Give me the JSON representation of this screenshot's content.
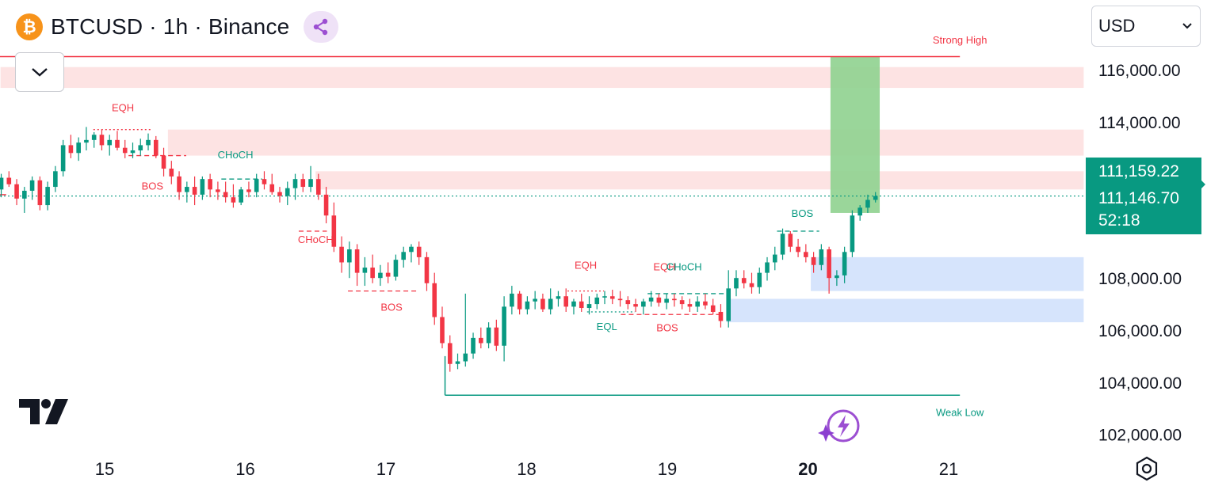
{
  "header": {
    "symbol": "BTCUSD · 1h · Binance",
    "coin_icon": "bitcoin-icon",
    "share_icon": "share-icon"
  },
  "currency_select": {
    "value": "USD"
  },
  "colors": {
    "up": "#089981",
    "down": "#f23645",
    "supply_zone": "#fde3e3",
    "demand_zone": "#d6e4fc",
    "target": "#8fd18f",
    "price_tag": "#089981"
  },
  "price_scale": {
    "ticks": [
      "116,000.00",
      "114,000.00",
      "108,000.00",
      "106,000.00",
      "104,000.00",
      "102,000.00"
    ],
    "last_price_tag": {
      "high": "111,159.22",
      "last": "111,146.70",
      "countdown": "52:18"
    }
  },
  "time_scale": {
    "labels": [
      "15",
      "16",
      "17",
      "18",
      "19",
      "20",
      "21"
    ],
    "bold_label": "20"
  },
  "chart_data": {
    "type": "candlestick",
    "title": "BTCUSD · 1h · Binance",
    "x": [
      "15",
      "16",
      "17",
      "18",
      "19",
      "20",
      "21"
    ],
    "ylim": [
      101400,
      117400
    ],
    "last_price": 111146.7,
    "strong_high": 116500,
    "weak_low": 103500,
    "zones": [
      {
        "kind": "supply",
        "from_day": 14.26,
        "to_day": 21.96,
        "low": 115300,
        "high": 116100
      },
      {
        "kind": "supply",
        "from_day": 15.45,
        "to_day": 21.96,
        "low": 112700,
        "high": 113700
      },
      {
        "kind": "supply",
        "from_day": 16.5,
        "to_day": 21.96,
        "low": 111400,
        "high": 112100
      },
      {
        "kind": "demand",
        "from_day": 20.02,
        "to_day": 21.96,
        "low": 107500,
        "high": 108800
      },
      {
        "kind": "demand",
        "from_day": 19.42,
        "to_day": 21.96,
        "low": 106300,
        "high": 107200
      },
      {
        "kind": "target",
        "from_day": 20.16,
        "to_day": 20.51,
        "low": 110500,
        "high": 116500
      }
    ],
    "labels": [
      {
        "text": "Strong High",
        "color": "#f23645",
        "day": 21.08,
        "price": 117000
      },
      {
        "text": "Weak Low",
        "color": "#089981",
        "day": 21.08,
        "price": 102700
      },
      {
        "text": "EQH",
        "color": "#f23645",
        "day": 15.13,
        "price": 114400
      },
      {
        "text": "BOS",
        "color": "#f23645",
        "day": 15.34,
        "price": 111400
      },
      {
        "text": "CHoCH",
        "color": "#089981",
        "day": 15.93,
        "price": 112600
      },
      {
        "text": "CHoCH",
        "color": "#f23645",
        "day": 16.5,
        "price": 109350
      },
      {
        "text": "BOS",
        "color": "#f23645",
        "day": 17.04,
        "price": 106750
      },
      {
        "text": "EQH",
        "color": "#f23645",
        "day": 18.42,
        "price": 108350
      },
      {
        "text": "EQL",
        "color": "#089981",
        "day": 18.57,
        "price": 106000
      },
      {
        "text": "BOS",
        "color": "#f23645",
        "day": 19.0,
        "price": 105950
      },
      {
        "text": "EQH",
        "color": "#f23645",
        "day": 18.98,
        "price": 108300
      },
      {
        "text": "CHoCH",
        "color": "#089981",
        "day": 19.12,
        "price": 108300
      },
      {
        "text": "BOS",
        "color": "#089981",
        "day": 19.96,
        "price": 110350
      }
    ],
    "structure_lines": [
      {
        "color": "#f23645",
        "dash": "dotted",
        "from_day": 14.92,
        "to_day": 15.33,
        "price": 113700
      },
      {
        "color": "#f23645",
        "dash": "dashed",
        "from_day": 15.17,
        "to_day": 15.58,
        "price": 112700
      },
      {
        "color": "#089981",
        "dash": "dashed",
        "from_day": 15.83,
        "to_day": 16.12,
        "price": 111800
      },
      {
        "color": "#f23645",
        "dash": "dashed",
        "from_day": 16.38,
        "to_day": 16.58,
        "price": 109800
      },
      {
        "color": "#f23645",
        "dash": "dashed",
        "from_day": 16.73,
        "to_day": 17.22,
        "price": 107500
      },
      {
        "color": "#f23645",
        "dash": "dotted",
        "from_day": 18.29,
        "to_day": 18.55,
        "price": 107500
      },
      {
        "color": "#089981",
        "dash": "dotted",
        "from_day": 18.43,
        "to_day": 18.77,
        "price": 106700
      },
      {
        "color": "#f23645",
        "dash": "dashed",
        "from_day": 18.67,
        "to_day": 19.37,
        "price": 106600
      },
      {
        "color": "#089981",
        "dash": "dashed",
        "from_day": 18.86,
        "to_day": 19.42,
        "price": 107400
      },
      {
        "color": "#089981",
        "dash": "dashed",
        "from_day": 19.78,
        "to_day": 20.08,
        "price": 109800
      }
    ],
    "series": [
      {
        "candles": [
          [
            14.265,
            111400,
            112000,
            111100,
            111850
          ],
          [
            14.32,
            111850,
            112100,
            111500,
            111600
          ],
          [
            14.375,
            111600,
            111800,
            110800,
            111050
          ],
          [
            14.43,
            111050,
            111500,
            110500,
            111350
          ],
          [
            14.485,
            111350,
            111900,
            111000,
            111750
          ],
          [
            14.54,
            111750,
            111900,
            110600,
            110800
          ],
          [
            14.595,
            110800,
            111700,
            110600,
            111500
          ],
          [
            14.65,
            111500,
            112300,
            111300,
            112100
          ],
          [
            14.705,
            112100,
            113300,
            111900,
            113100
          ],
          [
            14.76,
            113100,
            113500,
            112600,
            112800
          ],
          [
            14.815,
            112800,
            113400,
            112500,
            113200
          ],
          [
            14.87,
            113200,
            113800,
            112900,
            113300
          ],
          [
            14.925,
            113300,
            113600,
            113000,
            113500
          ],
          [
            14.98,
            113500,
            113700,
            112900,
            113100
          ],
          [
            15.035,
            113100,
            113500,
            112700,
            113300
          ],
          [
            15.09,
            113300,
            113650,
            112900,
            113000
          ],
          [
            15.145,
            113000,
            113300,
            112600,
            112800
          ],
          [
            15.2,
            112800,
            113200,
            112600,
            112900
          ],
          [
            15.255,
            112900,
            113350,
            112700,
            113100
          ],
          [
            15.31,
            113100,
            113550,
            112900,
            113300
          ],
          [
            15.365,
            113300,
            113450,
            112600,
            112700
          ],
          [
            15.42,
            112700,
            113000,
            111900,
            112200
          ],
          [
            15.475,
            112200,
            112500,
            111600,
            111900
          ],
          [
            15.53,
            111900,
            112100,
            111000,
            111300
          ],
          [
            15.585,
            111300,
            111700,
            110900,
            111500
          ],
          [
            15.64,
            111500,
            111900,
            110800,
            111200
          ],
          [
            15.695,
            111200,
            111900,
            111000,
            111800
          ],
          [
            15.75,
            111800,
            112000,
            111100,
            111400
          ],
          [
            15.805,
            111400,
            111700,
            111000,
            111300
          ],
          [
            15.86,
            111300,
            111700,
            110900,
            111100
          ],
          [
            15.915,
            111100,
            111600,
            110700,
            110900
          ],
          [
            15.97,
            110900,
            111500,
            110800,
            111400
          ],
          [
            16.025,
            111400,
            111700,
            111100,
            111300
          ],
          [
            16.08,
            111300,
            112000,
            111100,
            111800
          ],
          [
            16.135,
            111800,
            112100,
            111400,
            111600
          ],
          [
            16.19,
            111600,
            112000,
            111200,
            111300
          ],
          [
            16.245,
            111300,
            111500,
            110900,
            111150
          ],
          [
            16.3,
            111150,
            111700,
            110800,
            111450
          ],
          [
            16.355,
            111450,
            112000,
            111000,
            111800
          ],
          [
            16.41,
            111800,
            112000,
            111300,
            111500
          ],
          [
            16.465,
            111500,
            112300,
            111300,
            111800
          ],
          [
            16.52,
            111800,
            112000,
            111000,
            111200
          ],
          [
            16.575,
            111200,
            111500,
            110100,
            110400
          ],
          [
            16.63,
            110400,
            110900,
            109000,
            109200
          ],
          [
            16.685,
            109200,
            109600,
            108200,
            108600
          ],
          [
            16.74,
            108600,
            109400,
            108000,
            109100
          ],
          [
            16.795,
            109100,
            109300,
            107700,
            108200
          ],
          [
            16.85,
            108200,
            108800,
            107700,
            108400
          ],
          [
            16.905,
            108400,
            108900,
            107800,
            108000
          ],
          [
            16.96,
            108000,
            108500,
            107700,
            108200
          ],
          [
            17.015,
            108200,
            108600,
            107800,
            108050
          ],
          [
            17.07,
            108050,
            108900,
            107900,
            108700
          ],
          [
            17.125,
            108700,
            109200,
            108400,
            109000
          ],
          [
            17.18,
            109000,
            109300,
            108600,
            109200
          ],
          [
            17.235,
            109200,
            109400,
            108500,
            108800
          ],
          [
            17.29,
            108800,
            109000,
            107500,
            107800
          ],
          [
            17.345,
            107800,
            108200,
            106200,
            106500
          ],
          [
            17.4,
            106500,
            106900,
            105300,
            105500
          ],
          [
            17.455,
            105500,
            105800,
            104400,
            104700
          ],
          [
            17.51,
            104700,
            105100,
            104500,
            104800
          ],
          [
            17.565,
            104800,
            107400,
            104600,
            105100
          ],
          [
            17.62,
            105100,
            105900,
            104900,
            105700
          ],
          [
            17.675,
            105700,
            106100,
            105300,
            105500
          ],
          [
            17.73,
            105500,
            106300,
            105300,
            106100
          ],
          [
            17.785,
            106100,
            106400,
            105200,
            105400
          ],
          [
            17.84,
            105400,
            107300,
            104800,
            106900
          ],
          [
            17.895,
            106900,
            107700,
            106600,
            107400
          ],
          [
            17.95,
            107400,
            107500,
            106600,
            106800
          ],
          [
            18.005,
            106800,
            107300,
            106600,
            107100
          ],
          [
            18.06,
            107100,
            107500,
            106800,
            107200
          ],
          [
            18.115,
            107200,
            107400,
            106700,
            106800
          ],
          [
            18.17,
            106800,
            107600,
            106600,
            107200
          ],
          [
            18.225,
            107200,
            107500,
            106900,
            107300
          ],
          [
            18.28,
            107300,
            107600,
            106700,
            106900
          ],
          [
            18.335,
            106900,
            107200,
            106600,
            107100
          ],
          [
            18.39,
            107100,
            107400,
            106700,
            106850
          ],
          [
            18.445,
            106850,
            107300,
            106600,
            107000
          ],
          [
            18.5,
            107000,
            107400,
            106800,
            107250
          ],
          [
            18.555,
            107250,
            107500,
            107000,
            107300
          ],
          [
            18.61,
            107300,
            107550,
            107000,
            107200
          ],
          [
            18.665,
            107200,
            107500,
            106900,
            107150
          ],
          [
            18.72,
            107150,
            107300,
            106800,
            107000
          ],
          [
            18.775,
            107000,
            107200,
            106700,
            106900
          ],
          [
            18.83,
            106900,
            107200,
            106600,
            107100
          ],
          [
            18.885,
            107100,
            107500,
            106900,
            107250
          ],
          [
            18.94,
            107250,
            107400,
            106900,
            107050
          ],
          [
            18.995,
            107050,
            107400,
            106800,
            107200
          ],
          [
            19.05,
            107200,
            107400,
            106900,
            107150
          ],
          [
            19.105,
            107150,
            107300,
            106800,
            107000
          ],
          [
            19.16,
            107000,
            107200,
            106700,
            106900
          ],
          [
            19.215,
            106900,
            107300,
            106700,
            107100
          ],
          [
            19.27,
            107100,
            107400,
            106800,
            106950
          ],
          [
            19.325,
            106950,
            107200,
            106600,
            106700
          ],
          [
            19.38,
            106700,
            107000,
            106100,
            106350
          ],
          [
            19.435,
            106350,
            108300,
            106100,
            107600
          ],
          [
            19.49,
            107600,
            108300,
            107300,
            108000
          ],
          [
            19.545,
            108000,
            108300,
            107600,
            107800
          ],
          [
            19.6,
            107800,
            108200,
            107400,
            107650
          ],
          [
            19.655,
            107650,
            108400,
            107400,
            108200
          ],
          [
            19.71,
            108200,
            108800,
            107900,
            108600
          ],
          [
            19.765,
            108600,
            109200,
            108300,
            108900
          ],
          [
            19.82,
            108900,
            109900,
            108700,
            109700
          ],
          [
            19.875,
            109700,
            109800,
            109000,
            109200
          ],
          [
            19.93,
            109200,
            109500,
            108800,
            109000
          ],
          [
            19.985,
            109000,
            109300,
            108600,
            108800
          ],
          [
            20.04,
            108800,
            109000,
            108200,
            108500
          ],
          [
            20.095,
            108500,
            109300,
            108300,
            109100
          ],
          [
            20.15,
            109100,
            109200,
            107400,
            108000
          ],
          [
            20.205,
            108000,
            108300,
            107700,
            108100
          ],
          [
            20.26,
            108100,
            109200,
            107800,
            109000
          ],
          [
            20.315,
            109000,
            110600,
            108800,
            110400
          ],
          [
            20.37,
            110400,
            110800,
            110200,
            110700
          ],
          [
            20.425,
            110700,
            111200,
            110500,
            111000
          ],
          [
            20.48,
            111000,
            111300,
            110900,
            111146.7
          ]
        ]
      }
    ]
  }
}
